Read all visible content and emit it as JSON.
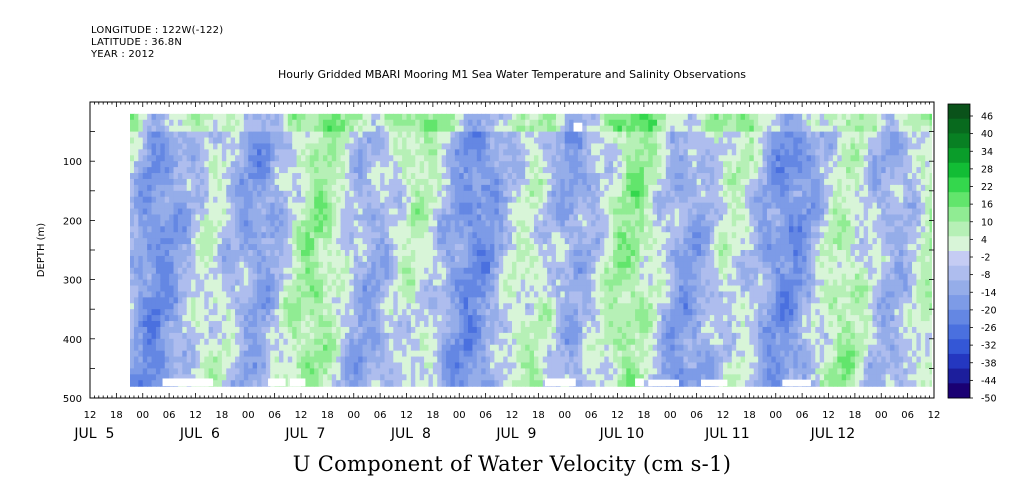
{
  "header": {
    "longitude": "LONGITUDE : 122W(-122)",
    "latitude": "LATITUDE : 36.8N",
    "year": "YEAR : 2012"
  },
  "chart_data": {
    "type": "heatmap",
    "title": "Hourly Gridded MBARI Mooring M1 Sea Water Temperature and Salinity Observations",
    "variable_label": "U Component of Water Velocity (cm s-1)",
    "ylabel": "DEPTH (m)",
    "y_axis": {
      "range": [
        500,
        0
      ],
      "inverted": true,
      "tick_labels": [
        "100",
        "200",
        "300",
        "400",
        "500"
      ],
      "tick_values": [
        100,
        200,
        300,
        400,
        500
      ],
      "data_top_depth": 20,
      "data_bottom_depth": 480
    },
    "x_axis": {
      "range_hours": [
        0,
        192
      ],
      "time_origin": "JUL 5 2012 12:00",
      "hour_ticks": [
        "12",
        "18",
        "00",
        "06",
        "12",
        "18",
        "00",
        "06",
        "12",
        "18",
        "00",
        "06",
        "12",
        "18",
        "00",
        "06",
        "12",
        "18",
        "00",
        "06",
        "12",
        "18",
        "00",
        "06",
        "12",
        "18",
        "00",
        "06",
        "12",
        "18",
        "00",
        "06",
        "12"
      ],
      "day_labels": [
        {
          "label": "JUL  5",
          "hour": 0
        },
        {
          "label": "JUL  6",
          "hour": 24
        },
        {
          "label": "JUL  7",
          "hour": 48
        },
        {
          "label": "JUL  8",
          "hour": 72
        },
        {
          "label": "JUL  9",
          "hour": 96
        },
        {
          "label": "JUL 10",
          "hour": 120
        },
        {
          "label": "JUL 11",
          "hour": 144
        },
        {
          "label": "JUL 12",
          "hour": 168
        }
      ]
    },
    "colorbar": {
      "levels": [
        -50,
        -44,
        -38,
        -32,
        -26,
        -20,
        -14,
        -8,
        -2,
        4,
        10,
        16,
        22,
        28,
        34,
        40,
        46
      ],
      "labels": [
        "46",
        "40",
        "34",
        "28",
        "22",
        "16",
        "10",
        "4",
        "-2",
        "-8",
        "-14",
        "-20",
        "-26",
        "-32",
        "-38",
        "-44",
        "-50"
      ],
      "negative_colors": [
        "#1a0073",
        "#1c1e9c",
        "#2437c0",
        "#3457d6",
        "#4a70df",
        "#6487e3",
        "#7d9be7",
        "#95ade9",
        "#aebdee",
        "#c5ccf3"
      ],
      "positive_colors": [
        "#d8f5d8",
        "#b6f0b6",
        "#90ec93",
        "#62e56c",
        "#34d74d",
        "#12bd35",
        "#0a9d2a",
        "#088023",
        "#086a1e",
        "#0a521a"
      ]
    },
    "dominant_pattern": "alternating vertical bands of positive (green) and negative (blue/periwinkle) velocity, values mostly between -26 and +22"
  }
}
